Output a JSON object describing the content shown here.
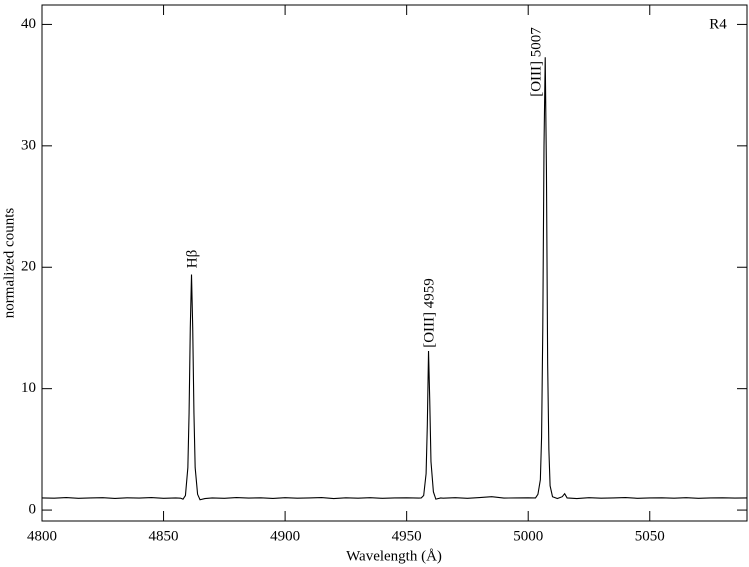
{
  "chart_data": {
    "type": "line",
    "x_label": "Wavelength  (Å)",
    "y_label": "normalized counts",
    "annotations": [
      "Hβ",
      "[OIII] 4959",
      "[OIII] 5007",
      "R4"
    ],
    "color": "#000000",
    "xlim": [
      4800,
      5090
    ],
    "xticks": [
      4800,
      4850,
      4900,
      4950,
      5000,
      5050
    ],
    "ylim": [
      -0.9,
      41.6
    ],
    "yticks": [
      0,
      10,
      20,
      30,
      40
    ],
    "x": [
      4800,
      4805,
      4810,
      4815,
      4820,
      4825,
      4830,
      4835,
      4840,
      4845,
      4850,
      4855,
      4857,
      4858,
      4859,
      4860,
      4860.5,
      4861,
      4861.5,
      4862,
      4862.5,
      4863,
      4864,
      4865,
      4867,
      4870,
      4875,
      4880,
      4885,
      4890,
      4895,
      4900,
      4905,
      4910,
      4915,
      4920,
      4925,
      4930,
      4935,
      4940,
      4945,
      4950,
      4955,
      4956,
      4957,
      4958,
      4958.5,
      4959,
      4959.5,
      4960,
      4961,
      4962,
      4964,
      4965,
      4970,
      4975,
      4980,
      4985,
      4990,
      4995,
      5000,
      5002,
      5003,
      5004,
      5005,
      5005.5,
      5006,
      5006.5,
      5007,
      5007.5,
      5008,
      5008.5,
      5009,
      5010,
      5012,
      5014,
      5015,
      5016,
      5020,
      5025,
      5030,
      5035,
      5040,
      5045,
      5050,
      5055,
      5060,
      5065,
      5070,
      5075,
      5080,
      5085,
      5090
    ],
    "values": [
      1.0,
      0.98,
      1.03,
      0.97,
      1.0,
      1.02,
      0.96,
      1.01,
      0.99,
      1.03,
      0.97,
      1.0,
      0.98,
      0.9,
      1.2,
      3.5,
      8.0,
      15.0,
      19.4,
      15.0,
      8.0,
      3.5,
      1.3,
      0.85,
      0.95,
      1.0,
      0.97,
      1.03,
      0.99,
      1.01,
      0.96,
      1.02,
      0.98,
      1.0,
      1.03,
      0.95,
      1.01,
      0.98,
      1.02,
      0.97,
      1.0,
      1.01,
      0.99,
      1.0,
      1.2,
      3.0,
      7.0,
      13.1,
      9.0,
      4.0,
      1.5,
      0.9,
      1.0,
      0.98,
      1.02,
      0.97,
      1.03,
      1.1,
      0.99,
      1.0,
      1.01,
      1.0,
      1.0,
      1.3,
      2.5,
      6.0,
      15.0,
      30.0,
      37.3,
      28.0,
      12.0,
      5.0,
      2.0,
      1.1,
      0.95,
      1.1,
      1.35,
      1.0,
      0.95,
      1.02,
      0.98,
      1.0,
      1.03,
      0.97,
      1.0,
      1.01,
      0.98,
      1.02,
      0.97,
      1.0,
      1.01,
      0.99,
      1.0
    ]
  }
}
